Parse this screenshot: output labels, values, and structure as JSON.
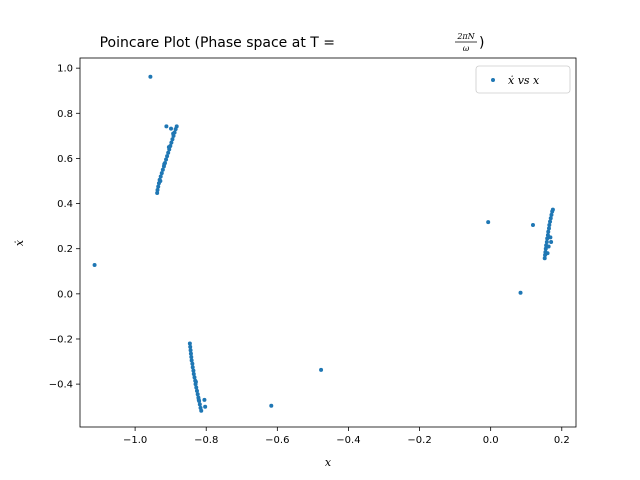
{
  "chart_data": {
    "type": "scatter",
    "title": "Poincare Plot (Phase space at T = 2πN/ω)",
    "title_parts": {
      "prefix": "Poincare Plot (Phase space at T = ",
      "numerator": "2πN",
      "denominator": "ω",
      "suffix": ")"
    },
    "xlabel": "x",
    "ylabel": "ẋ",
    "xlim": [
      -1.155,
      0.24
    ],
    "ylim": [
      -0.59,
      1.045
    ],
    "xticks": [
      -1.0,
      -0.8,
      -0.6,
      -0.4,
      -0.2,
      0.0,
      0.2
    ],
    "xtick_labels": [
      "−1.0",
      "−0.8",
      "−0.6",
      "−0.4",
      "−0.2",
      "0.0",
      "0.2"
    ],
    "yticks": [
      -0.4,
      -0.2,
      0.0,
      0.2,
      0.4,
      0.6,
      0.8,
      1.0
    ],
    "ytick_labels": [
      "−0.4",
      "−0.2",
      "0.0",
      "0.2",
      "0.4",
      "0.6",
      "0.8",
      "1.0"
    ],
    "grid": false,
    "legend_position": "top-right",
    "color": "#1f77b4",
    "series": [
      {
        "name": "ẋ vs x",
        "points": [
          [
            -0.957,
            0.962
          ],
          [
            -1.114,
            0.128
          ],
          [
            -0.007,
            0.318
          ],
          [
            0.119,
            0.305
          ],
          [
            0.084,
            0.005
          ],
          [
            -0.477,
            -0.337
          ],
          [
            -0.617,
            -0.496
          ],
          [
            -0.912,
            0.742
          ],
          [
            -0.899,
            0.732
          ],
          [
            -0.883,
            0.742
          ],
          [
            -0.886,
            0.73
          ],
          [
            -0.889,
            0.715
          ],
          [
            -0.892,
            0.7
          ],
          [
            -0.895,
            0.685
          ],
          [
            -0.898,
            0.67
          ],
          [
            -0.901,
            0.655
          ],
          [
            -0.904,
            0.64
          ],
          [
            -0.907,
            0.625
          ],
          [
            -0.91,
            0.61
          ],
          [
            -0.913,
            0.595
          ],
          [
            -0.916,
            0.58
          ],
          [
            -0.919,
            0.565
          ],
          [
            -0.922,
            0.55
          ],
          [
            -0.925,
            0.535
          ],
          [
            -0.928,
            0.52
          ],
          [
            -0.931,
            0.505
          ],
          [
            -0.933,
            0.49
          ],
          [
            -0.935,
            0.475
          ],
          [
            -0.937,
            0.46
          ],
          [
            -0.938,
            0.447
          ],
          [
            -0.929,
            0.5
          ],
          [
            -0.918,
            0.575
          ],
          [
            -0.905,
            0.65
          ],
          [
            -0.893,
            0.71
          ],
          [
            -0.846,
            -0.22
          ],
          [
            -0.845,
            -0.235
          ],
          [
            -0.844,
            -0.25
          ],
          [
            -0.843,
            -0.265
          ],
          [
            -0.842,
            -0.28
          ],
          [
            -0.841,
            -0.295
          ],
          [
            -0.839,
            -0.31
          ],
          [
            -0.838,
            -0.325
          ],
          [
            -0.836,
            -0.34
          ],
          [
            -0.835,
            -0.355
          ],
          [
            -0.833,
            -0.37
          ],
          [
            -0.831,
            -0.385
          ],
          [
            -0.83,
            -0.4
          ],
          [
            -0.828,
            -0.415
          ],
          [
            -0.826,
            -0.43
          ],
          [
            -0.824,
            -0.445
          ],
          [
            -0.822,
            -0.46
          ],
          [
            -0.82,
            -0.475
          ],
          [
            -0.818,
            -0.49
          ],
          [
            -0.816,
            -0.505
          ],
          [
            -0.814,
            -0.518
          ],
          [
            -0.805,
            -0.47
          ],
          [
            -0.803,
            -0.5
          ],
          [
            -0.829,
            -0.39
          ],
          [
            -0.821,
            -0.47
          ],
          [
            0.152,
            0.158
          ],
          [
            0.153,
            0.172
          ],
          [
            0.154,
            0.185
          ],
          [
            0.155,
            0.2
          ],
          [
            0.156,
            0.215
          ],
          [
            0.158,
            0.23
          ],
          [
            0.159,
            0.245
          ],
          [
            0.161,
            0.26
          ],
          [
            0.162,
            0.275
          ],
          [
            0.164,
            0.29
          ],
          [
            0.165,
            0.305
          ],
          [
            0.167,
            0.32
          ],
          [
            0.169,
            0.335
          ],
          [
            0.171,
            0.35
          ],
          [
            0.173,
            0.365
          ],
          [
            0.175,
            0.373
          ],
          [
            0.17,
            0.23
          ],
          [
            0.168,
            0.25
          ],
          [
            0.163,
            0.21
          ],
          [
            0.16,
            0.18
          ]
        ]
      }
    ]
  }
}
